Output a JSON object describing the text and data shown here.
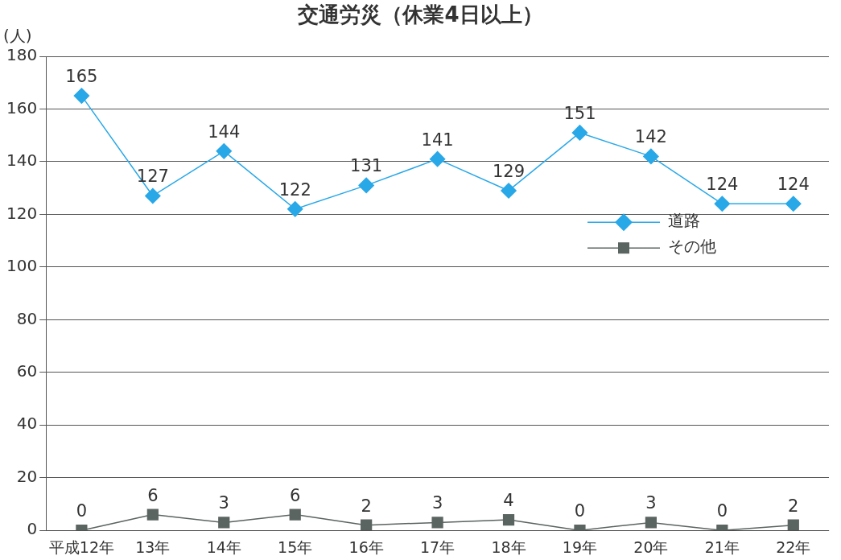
{
  "chart_data": {
    "type": "line",
    "title": "交通労災（休業4日以上）",
    "ylabel": "(人)",
    "categories": [
      "平成12年",
      "13年",
      "14年",
      "15年",
      "16年",
      "17年",
      "18年",
      "19年",
      "20年",
      "21年",
      "22年"
    ],
    "series": [
      {
        "name": "道路",
        "color": "#29a8e8",
        "marker": "diamond",
        "values": [
          165,
          127,
          144,
          122,
          131,
          141,
          129,
          151,
          142,
          124,
          124
        ]
      },
      {
        "name": "その他",
        "color": "#5a6460",
        "marker": "square",
        "values": [
          0,
          6,
          3,
          6,
          2,
          3,
          4,
          0,
          3,
          0,
          2
        ]
      }
    ],
    "ylim": [
      0,
      180
    ],
    "yticks": [
      0,
      20,
      40,
      60,
      80,
      100,
      120,
      140,
      160,
      180
    ],
    "grid": "y",
    "legend": "right",
    "data_labels": true
  }
}
